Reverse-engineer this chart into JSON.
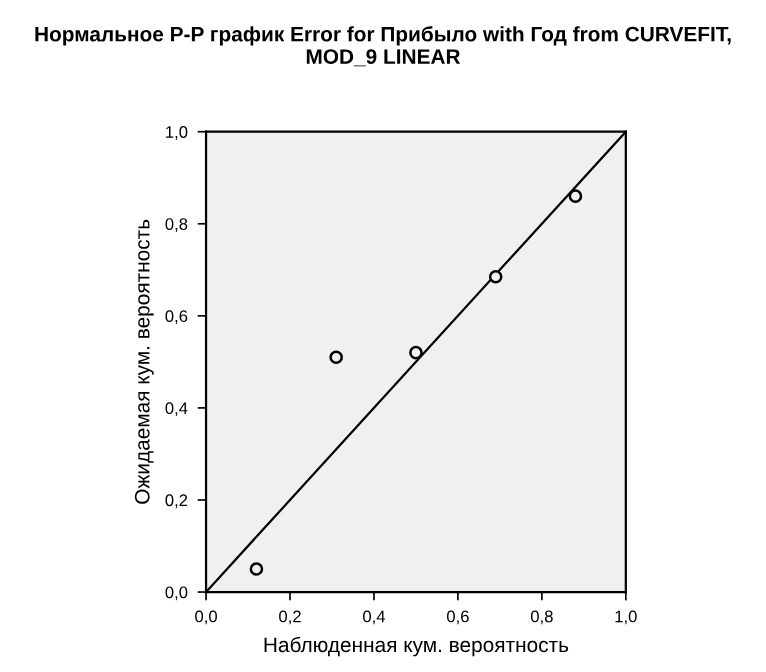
{
  "chart_data": {
    "type": "scatter",
    "title": "Нормальное P-P график Error for Прибыло with Год from CURVEFIT, MOD_9 LINEAR",
    "xlabel": "Наблюденная кум. вероятность",
    "ylabel": "Ожидаемая кум. вероятность",
    "x": [
      0.12,
      0.31,
      0.5,
      0.69,
      0.88
    ],
    "series": [
      {
        "color": "#000000",
        "marker": "circle",
        "values": [
          0.05,
          0.51,
          0.52,
          0.685,
          0.86
        ]
      },
      {
        "type": "line",
        "color": "#000000",
        "marker": "none",
        "x": [
          0,
          1
        ],
        "values": [
          0,
          1
        ]
      }
    ],
    "xlim": [
      0,
      1
    ],
    "ylim": [
      0,
      1
    ],
    "xticks": [
      {
        "value": 0,
        "label": "0,0"
      },
      {
        "value": 0.2,
        "label": "0,2"
      },
      {
        "value": 0.4,
        "label": "0,4"
      },
      {
        "value": 0.6,
        "label": "0,6"
      },
      {
        "value": 0.8,
        "label": "0,8"
      },
      {
        "value": 1,
        "label": "1,0"
      }
    ],
    "yticks": [
      {
        "value": 0,
        "label": "0,0"
      },
      {
        "value": 0.2,
        "label": "0,2"
      },
      {
        "value": 0.4,
        "label": "0,4"
      },
      {
        "value": 0.6,
        "label": "0,6"
      },
      {
        "value": 0.8,
        "label": "0,8"
      },
      {
        "value": 1,
        "label": "1,0"
      }
    ],
    "grid": false,
    "legend": false
  }
}
